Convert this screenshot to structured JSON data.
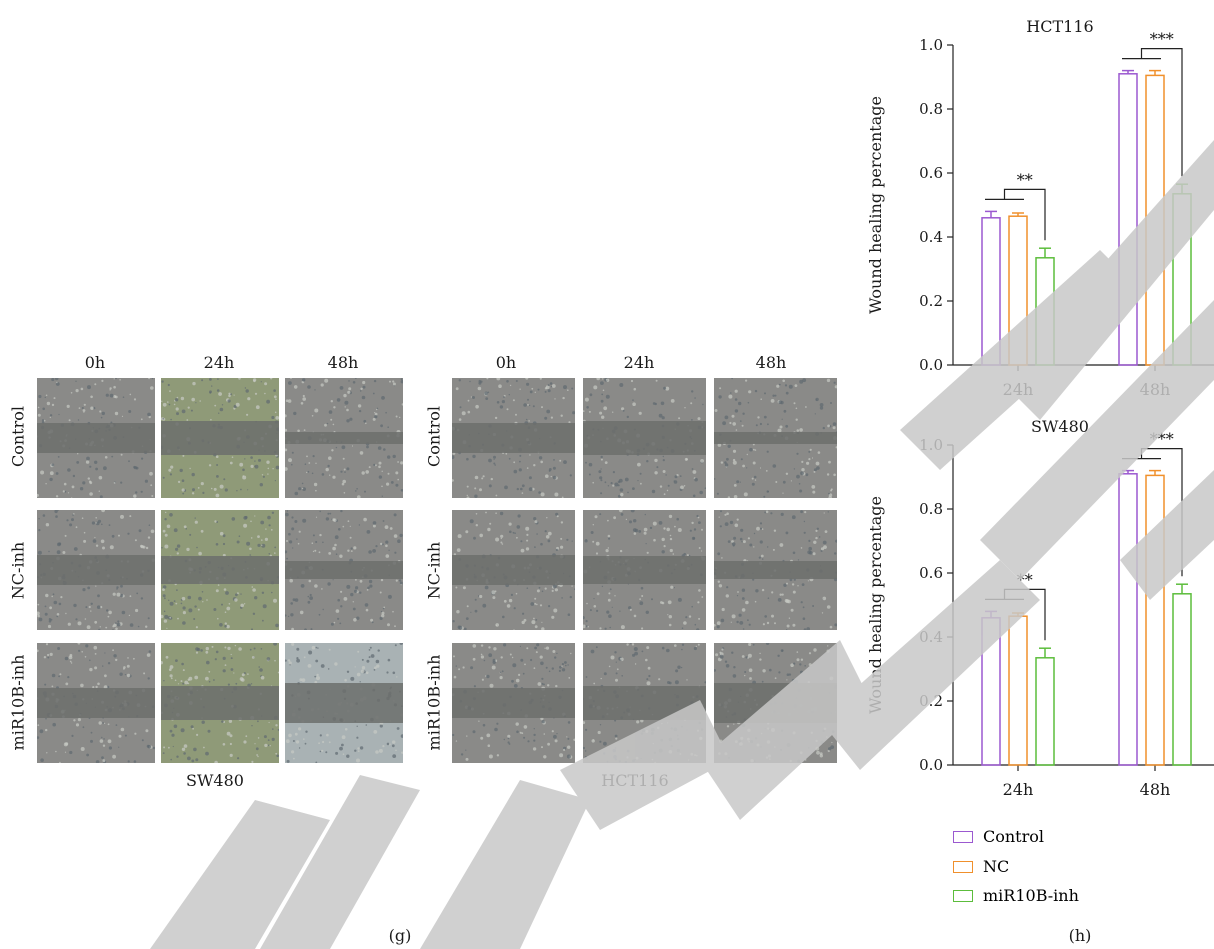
{
  "panel_g": {
    "label": "(g)",
    "col_labels": [
      "0h",
      "24h",
      "48h"
    ],
    "row_labels": [
      "Control",
      "NC-inh",
      "miR10B-inh"
    ],
    "groups": [
      {
        "name": "SW480"
      },
      {
        "name": "HCT116"
      }
    ]
  },
  "panel_h": {
    "label": "(h)"
  },
  "colors": {
    "Control": "#9b59d0",
    "NC": "#f0902c",
    "miR10B-inh": "#5cbd3c",
    "watermark": "#c8c8c8"
  },
  "chart_data": [
    {
      "type": "bar",
      "title": "HCT116",
      "xlabel": "",
      "ylabel": "Wound healing percentage",
      "categories": [
        "24h",
        "48h"
      ],
      "ylim": [
        0,
        1.0
      ],
      "yticks": [
        "0.0",
        "0.2",
        "0.4",
        "0.6",
        "0.8",
        "1.0"
      ],
      "series": [
        {
          "name": "Control",
          "values": [
            0.46,
            0.91
          ],
          "errors": [
            0.02,
            0.01
          ]
        },
        {
          "name": "NC",
          "values": [
            0.465,
            0.905
          ],
          "errors": [
            0.01,
            0.015
          ]
        },
        {
          "name": "miR10B-inh",
          "values": [
            0.335,
            0.535
          ],
          "errors": [
            0.03,
            0.03
          ]
        }
      ],
      "annotations": [
        "**",
        "***"
      ]
    },
    {
      "type": "bar",
      "title": "SW480",
      "xlabel": "",
      "ylabel": "Wound healing percentage",
      "categories": [
        "24h",
        "48h"
      ],
      "ylim": [
        0,
        1.0
      ],
      "yticks": [
        "0.0",
        "0.2",
        "0.4",
        "0.6",
        "0.8",
        "1.0"
      ],
      "series": [
        {
          "name": "Control",
          "values": [
            0.46,
            0.91
          ],
          "errors": [
            0.02,
            0.01
          ]
        },
        {
          "name": "NC",
          "values": [
            0.465,
            0.905
          ],
          "errors": [
            0.01,
            0.015
          ]
        },
        {
          "name": "miR10B-inh",
          "values": [
            0.335,
            0.535
          ],
          "errors": [
            0.03,
            0.03
          ]
        }
      ],
      "annotations": [
        "**",
        "***"
      ]
    }
  ],
  "legend": [
    "Control",
    "NC",
    "miR10B-inh"
  ]
}
